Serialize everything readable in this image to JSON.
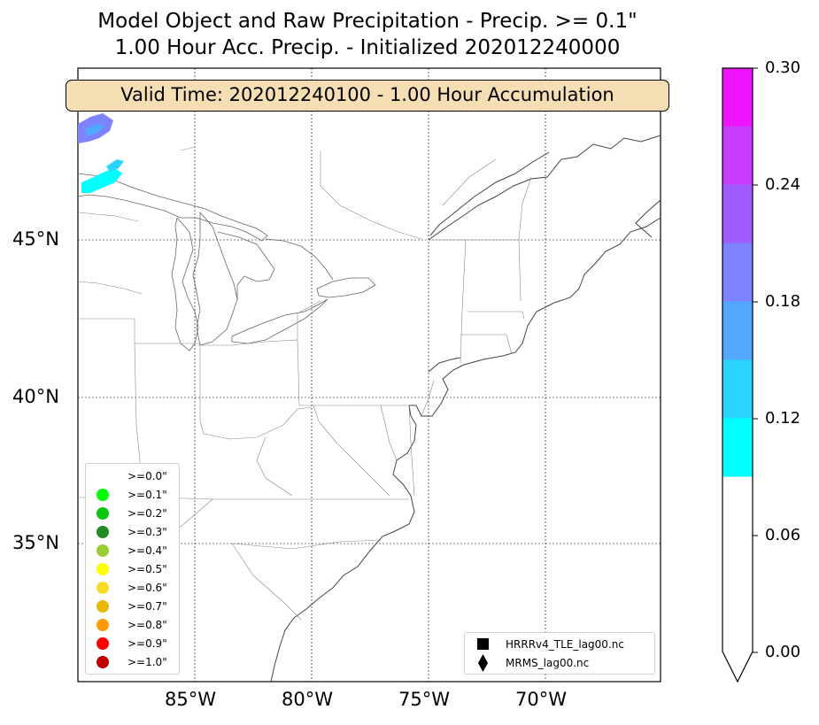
{
  "title": {
    "line1": "Model Object and Raw Precipitation - Precip. >= 0.1\"",
    "line2": "1.00 Hour Acc. Precip. - Initialized 202012240000"
  },
  "valid_time_label": "Valid Time: 202012240100 - 1.00 Hour Accumulation",
  "lat_labels": [
    "45°N",
    "40°N",
    "35°N"
  ],
  "lon_labels": [
    "85°W",
    "80°W",
    "75°W",
    "70°W"
  ],
  "colorbar": {
    "ticks": [
      "0.30",
      "0.24",
      "0.18",
      "0.12",
      "0.06",
      "0.00"
    ],
    "colors": [
      "#ffffff",
      "#00ffff",
      "#2bd4ff",
      "#52a8ff",
      "#7d82ff",
      "#a15cff",
      "#c83cff",
      "#ee14ff"
    ]
  },
  "threshold_legend": [
    {
      "label": ">=0.0\"",
      "color": "#ffffff"
    },
    {
      "label": ">=0.1\"",
      "color": "#00ff00"
    },
    {
      "label": ">=0.2\"",
      "color": "#0cc80c"
    },
    {
      "label": ">=0.3\"",
      "color": "#228b22"
    },
    {
      "label": ">=0.4\"",
      "color": "#9acd32"
    },
    {
      "label": ">=0.5\"",
      "color": "#ffff00"
    },
    {
      "label": ">=0.6\"",
      "color": "#f7dc22"
    },
    {
      "label": ">=0.7\"",
      "color": "#e6b800"
    },
    {
      "label": ">=0.8\"",
      "color": "#ff9a00"
    },
    {
      "label": ">=0.9\"",
      "color": "#ff0000"
    },
    {
      "label": ">=1.0\"",
      "color": "#c00000"
    }
  ],
  "model_legend": [
    {
      "label": "HRRRv4_TLE_lag00.nc",
      "marker": "square"
    },
    {
      "label": "MRMS_lag00.nc",
      "marker": "diamond"
    }
  ]
}
